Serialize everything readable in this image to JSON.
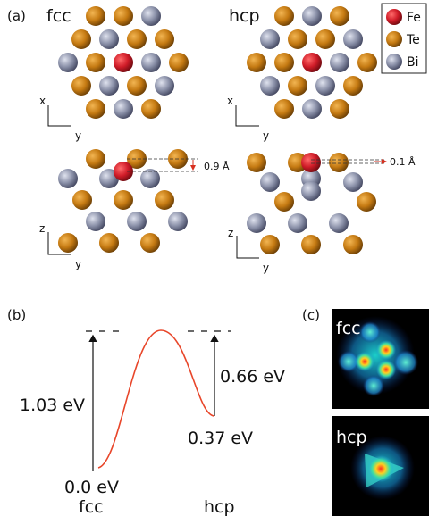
{
  "panels": {
    "a": "(a)",
    "b": "(b)",
    "c": "(c)"
  },
  "structures": {
    "fcc": "fcc",
    "hcp": "hcp",
    "axis_x": "x",
    "axis_y": "y",
    "axis_z": "z",
    "fcc_height": "0.9 Å",
    "hcp_height": "0.1 Å"
  },
  "legend": [
    {
      "label": "Fe",
      "color": "#cc1e2a"
    },
    {
      "label": "Te",
      "color": "#c57a12"
    },
    {
      "label": "Bi",
      "color": "#8a90a8"
    }
  ],
  "energy": {
    "barrier_fcc": "1.03 eV",
    "barrier_hcp": "0.66 eV",
    "fcc_energy": "0.0 eV",
    "hcp_energy": "0.37 eV",
    "start_label": "fcc",
    "end_label": "hcp",
    "curve_color": "#e8462a"
  },
  "maps": {
    "fcc": "fcc",
    "hcp": "hcp"
  }
}
